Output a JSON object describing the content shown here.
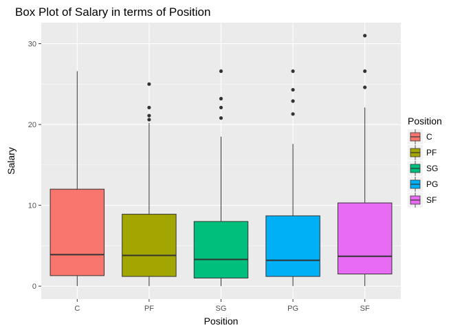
{
  "chart_data": {
    "type": "box",
    "title": "Box Plot of Salary in terms of Position",
    "xlabel": "Position",
    "ylabel": "Salary",
    "ylim": [
      -1.6,
      32.6
    ],
    "yticks": [
      0,
      10,
      20,
      30
    ],
    "grid": true,
    "legend": {
      "title": "Position",
      "placement": "right"
    },
    "categories": [
      "C",
      "PF",
      "SG",
      "PG",
      "SF"
    ],
    "colors": [
      "#F8766D",
      "#A3A500",
      "#00BF7D",
      "#00B0F6",
      "#E76BF3"
    ],
    "boxes": [
      {
        "name": "C",
        "min": 0.0,
        "q1": 1.3,
        "median": 3.9,
        "q3": 12.0,
        "max": 26.6,
        "outliers": []
      },
      {
        "name": "PF",
        "min": 0.0,
        "q1": 1.2,
        "median": 3.8,
        "q3": 8.9,
        "max": 20.2,
        "outliers": [
          20.6,
          21.1,
          22.1,
          25.0
        ]
      },
      {
        "name": "SG",
        "min": 0.0,
        "q1": 1.0,
        "median": 3.3,
        "q3": 8.0,
        "max": 18.5,
        "outliers": [
          20.8,
          22.1,
          23.2,
          26.6
        ]
      },
      {
        "name": "PG",
        "min": 0.0,
        "q1": 1.2,
        "median": 3.2,
        "q3": 8.7,
        "max": 17.6,
        "outliers": [
          21.3,
          22.9,
          24.3,
          26.6
        ]
      },
      {
        "name": "SF",
        "min": 0.0,
        "q1": 1.5,
        "median": 3.7,
        "q3": 10.3,
        "max": 22.1,
        "outliers": [
          24.6,
          26.6,
          31.0
        ]
      }
    ]
  }
}
